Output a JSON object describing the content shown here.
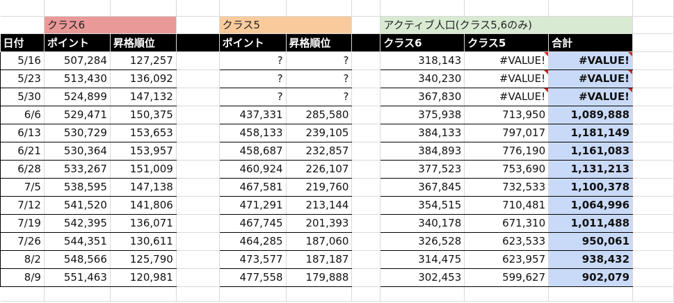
{
  "groups": {
    "class6": "クラス6",
    "class5": "クラス5",
    "active": "アクティブ人口(クラス5,6のみ)"
  },
  "headers": {
    "date": "日付",
    "c6_points": "ポイント",
    "c6_rank": "昇格順位",
    "c5_points": "ポイント",
    "c5_rank": "昇格順位",
    "active_c6": "クラス6",
    "active_c5": "クラス5",
    "total": "合計"
  },
  "rows": [
    {
      "date": "5/16",
      "c6p": "507,284",
      "c6r": "127,257",
      "c5p": "?",
      "c5r": "?",
      "a6": "318,143",
      "a5": "#VALUE!",
      "tot": "#VALUE!"
    },
    {
      "date": "5/23",
      "c6p": "513,430",
      "c6r": "136,092",
      "c5p": "?",
      "c5r": "?",
      "a6": "340,230",
      "a5": "#VALUE!",
      "tot": "#VALUE!"
    },
    {
      "date": "5/30",
      "c6p": "524,899",
      "c6r": "147,132",
      "c5p": "?",
      "c5r": "?",
      "a6": "367,830",
      "a5": "#VALUE!",
      "tot": "#VALUE!"
    },
    {
      "date": "6/6",
      "c6p": "529,471",
      "c6r": "150,375",
      "c5p": "437,331",
      "c5r": "285,580",
      "a6": "375,938",
      "a5": "713,950",
      "tot": "1,089,888"
    },
    {
      "date": "6/13",
      "c6p": "530,729",
      "c6r": "153,653",
      "c5p": "458,133",
      "c5r": "239,105",
      "a6": "384,133",
      "a5": "797,017",
      "tot": "1,181,149"
    },
    {
      "date": "6/21",
      "c6p": "530,364",
      "c6r": "153,957",
      "c5p": "458,687",
      "c5r": "232,857",
      "a6": "384,893",
      "a5": "776,190",
      "tot": "1,161,083"
    },
    {
      "date": "6/28",
      "c6p": "533,267",
      "c6r": "151,009",
      "c5p": "460,924",
      "c5r": "226,107",
      "a6": "377,523",
      "a5": "753,690",
      "tot": "1,131,213"
    },
    {
      "date": "7/5",
      "c6p": "538,595",
      "c6r": "147,138",
      "c5p": "467,581",
      "c5r": "219,760",
      "a6": "367,845",
      "a5": "732,533",
      "tot": "1,100,378"
    },
    {
      "date": "7/12",
      "c6p": "541,520",
      "c6r": "141,806",
      "c5p": "471,291",
      "c5r": "213,144",
      "a6": "354,515",
      "a5": "710,481",
      "tot": "1,064,996"
    },
    {
      "date": "7/19",
      "c6p": "542,395",
      "c6r": "136,071",
      "c5p": "467,745",
      "c5r": "201,393",
      "a6": "340,178",
      "a5": "671,310",
      "tot": "1,011,488"
    },
    {
      "date": "7/26",
      "c6p": "544,351",
      "c6r": "130,611",
      "c5p": "464,285",
      "c5r": "187,060",
      "a6": "326,528",
      "a5": "623,533",
      "tot": "950,061"
    },
    {
      "date": "8/2",
      "c6p": "548,566",
      "c6r": "125,790",
      "c5p": "473,577",
      "c5r": "187,187",
      "a6": "314,475",
      "a5": "623,957",
      "tot": "938,432"
    },
    {
      "date": "8/9",
      "c6p": "551,463",
      "c6r": "120,981",
      "c5p": "477,558",
      "c5r": "179,888",
      "a6": "302,453",
      "a5": "599,627",
      "tot": "902,079"
    }
  ],
  "colors": {
    "class6_fill": "#ea9999",
    "class5_fill": "#f9cb9c",
    "active_fill": "#d9ead3",
    "total_fill": "#c9daf8",
    "header_fill": "#000000",
    "error_marker": "#cc2b1d"
  }
}
